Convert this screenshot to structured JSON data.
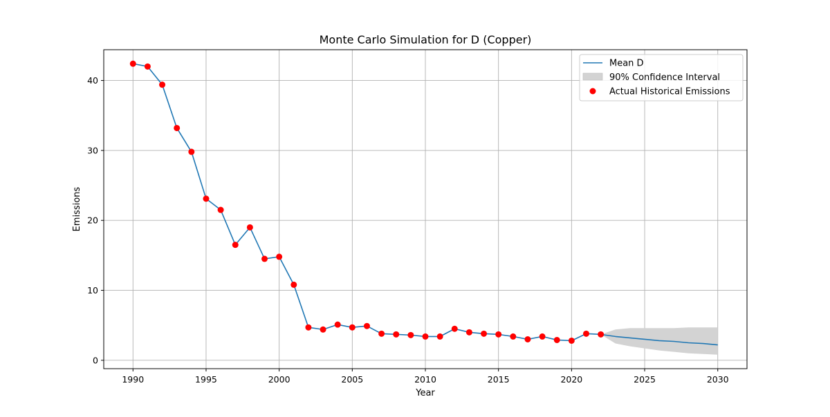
{
  "chart_data": {
    "type": "line",
    "title": "Monte Carlo Simulation for D (Copper)",
    "xlabel": "Year",
    "ylabel": "Emissions",
    "xlim": [
      1988,
      2032
    ],
    "ylim": [
      -1.2,
      44.4
    ],
    "x_ticks": [
      1990,
      1995,
      2000,
      2005,
      2010,
      2015,
      2020,
      2025,
      2030
    ],
    "y_ticks": [
      0,
      10,
      20,
      30,
      40
    ],
    "grid": true,
    "legend_position": "top-right",
    "colors": {
      "mean_line": "#1f77b4",
      "confidence_fill": "#d3d3d3",
      "actual_points": "#ff0000",
      "grid": "#b0b0b0"
    },
    "series": [
      {
        "name": "Mean D",
        "kind": "line",
        "x": [
          1990,
          1991,
          1992,
          1993,
          1994,
          1995,
          1996,
          1997,
          1998,
          1999,
          2000,
          2001,
          2002,
          2003,
          2004,
          2005,
          2006,
          2007,
          2008,
          2009,
          2010,
          2011,
          2012,
          2013,
          2014,
          2015,
          2016,
          2017,
          2018,
          2019,
          2020,
          2021,
          2022,
          2023,
          2024,
          2025,
          2026,
          2027,
          2028,
          2029,
          2030
        ],
        "y": [
          42.4,
          42.0,
          39.4,
          33.2,
          29.8,
          23.1,
          21.5,
          16.5,
          19.0,
          14.5,
          14.8,
          10.8,
          4.7,
          4.4,
          5.1,
          4.7,
          4.9,
          3.8,
          3.7,
          3.6,
          3.4,
          3.4,
          4.5,
          4.0,
          3.8,
          3.7,
          3.4,
          3.0,
          3.4,
          2.9,
          2.8,
          3.8,
          3.7,
          3.4,
          3.2,
          3.0,
          2.8,
          2.7,
          2.5,
          2.4,
          2.2
        ]
      },
      {
        "name": "90% Confidence Interval",
        "kind": "band",
        "x": [
          2022,
          2023,
          2024,
          2025,
          2026,
          2027,
          2028,
          2029,
          2030
        ],
        "lower": [
          3.7,
          2.4,
          2.0,
          1.7,
          1.4,
          1.2,
          1.0,
          0.9,
          0.8
        ],
        "upper": [
          3.7,
          4.4,
          4.6,
          4.6,
          4.6,
          4.6,
          4.7,
          4.7,
          4.7
        ]
      },
      {
        "name": "Actual Historical Emissions",
        "kind": "scatter",
        "x": [
          1990,
          1991,
          1992,
          1993,
          1994,
          1995,
          1996,
          1997,
          1998,
          1999,
          2000,
          2001,
          2002,
          2003,
          2004,
          2005,
          2006,
          2007,
          2008,
          2009,
          2010,
          2011,
          2012,
          2013,
          2014,
          2015,
          2016,
          2017,
          2018,
          2019,
          2020,
          2021,
          2022
        ],
        "y": [
          42.4,
          42.0,
          39.4,
          33.2,
          29.8,
          23.1,
          21.5,
          16.5,
          19.0,
          14.5,
          14.8,
          10.8,
          4.7,
          4.4,
          5.1,
          4.7,
          4.9,
          3.8,
          3.7,
          3.6,
          3.4,
          3.4,
          4.5,
          4.0,
          3.8,
          3.7,
          3.4,
          3.0,
          3.4,
          2.9,
          2.8,
          3.8,
          3.7
        ]
      }
    ]
  }
}
